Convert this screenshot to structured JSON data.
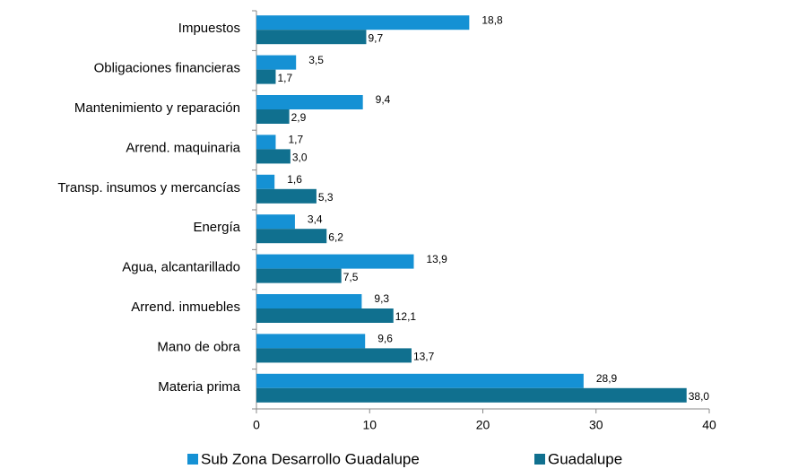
{
  "chart_data": {
    "type": "bar",
    "orientation": "horizontal",
    "categories": [
      "Impuestos",
      "Obligaciones financieras",
      "Mantenimiento y reparación",
      "Arrend. maquinaria",
      "Transp. insumos y mercancías",
      "Energía",
      "Agua, alcantarillado",
      "Arrend. inmuebles",
      "Mano de obra",
      "Materia prima"
    ],
    "series": [
      {
        "name": "Sub Zona Desarrollo Guadalupe",
        "color": "#1591d4",
        "values": [
          18.8,
          3.5,
          9.4,
          1.7,
          1.6,
          3.4,
          13.9,
          9.3,
          9.6,
          28.9
        ],
        "value_labels": [
          "18,8",
          "3,5",
          "9,4",
          "1,7",
          "1,6",
          "3,4",
          "13,9",
          "9,3",
          "9,6",
          "28,9"
        ]
      },
      {
        "name": "Guadalupe",
        "color": "#10708f",
        "values": [
          9.7,
          1.7,
          2.9,
          3.0,
          5.3,
          6.2,
          7.5,
          12.1,
          13.7,
          38.0
        ],
        "value_labels": [
          "9,7",
          "1,7",
          "2,9",
          "3,0",
          "5,3",
          "6,2",
          "7,5",
          "12,1",
          "13,7",
          "38,0"
        ]
      }
    ],
    "xlim": [
      0,
      40
    ],
    "xticks": [
      0,
      10,
      20,
      30,
      40
    ],
    "legend": "bottom"
  }
}
